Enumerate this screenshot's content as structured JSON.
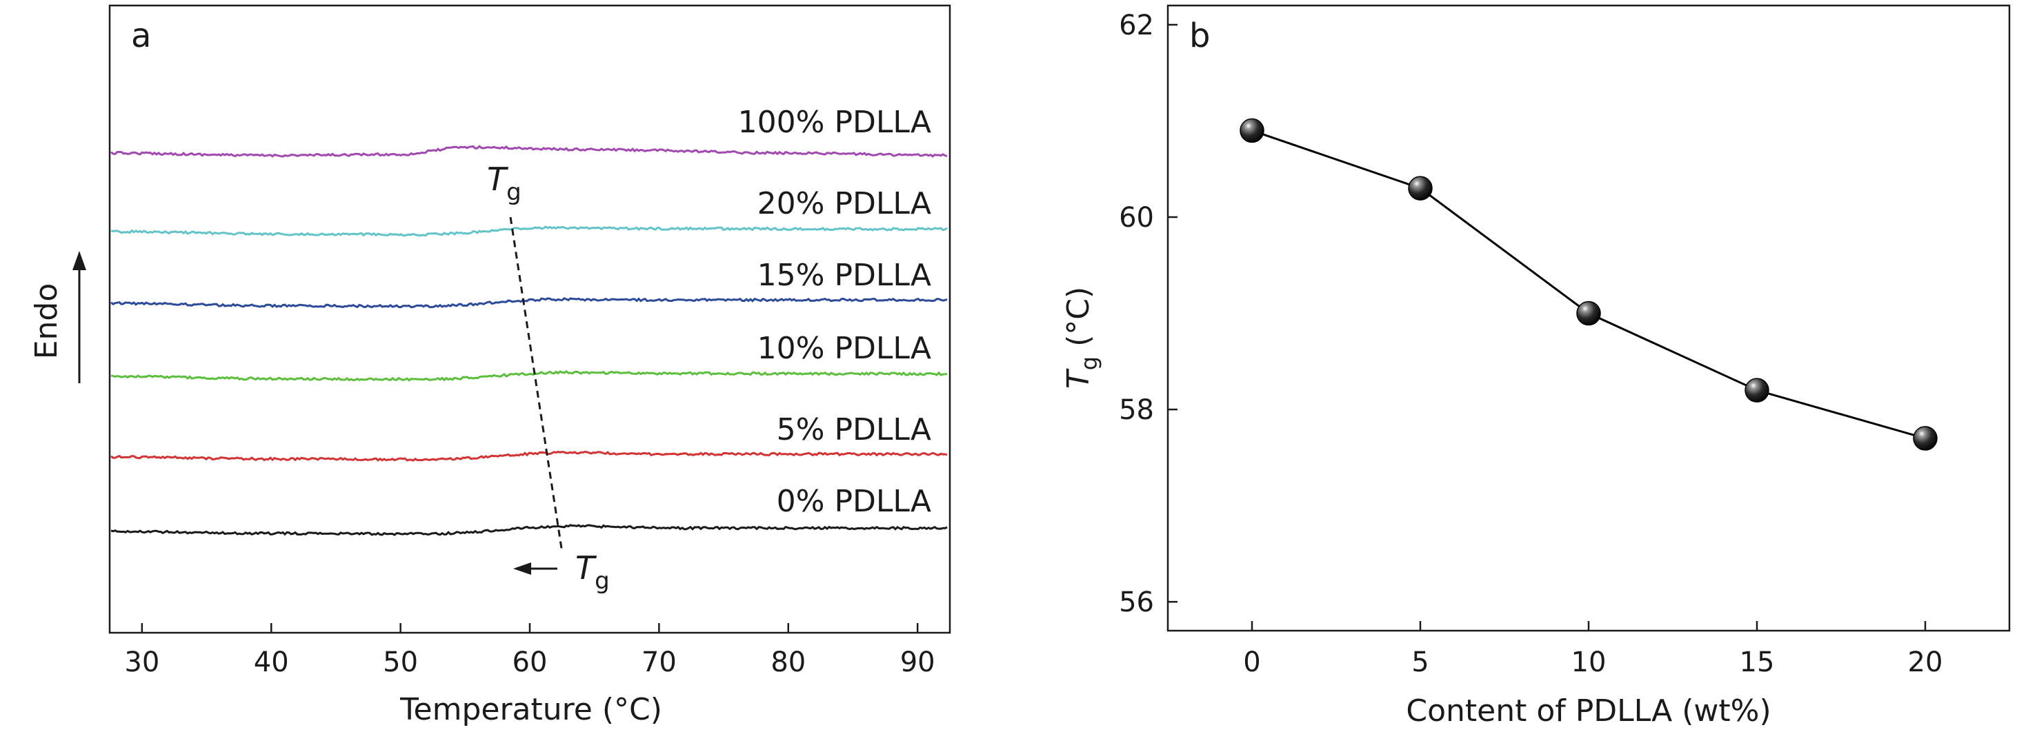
{
  "chart_data": [
    {
      "panel_label": "a",
      "type": "line",
      "xlabel": "Temperature (°C)",
      "ylabel": "Endo",
      "xlim": [
        27.5,
        92.5
      ],
      "xticks": [
        30,
        40,
        50,
        60,
        70,
        80,
        90
      ],
      "grid": false,
      "annotations": {
        "tg_marker_top": {
          "base": "T",
          "sub": "g"
        },
        "tg_marker_bottom": {
          "base": "T",
          "sub": "g"
        }
      },
      "series": [
        {
          "name": "100% PDLLA",
          "color": "#a149b0",
          "tg": 55,
          "x": [
            27.5,
            40,
            50,
            55,
            65,
            80,
            92.5
          ],
          "y": [
            0.0,
            -0.05,
            -0.03,
            0.12,
            0.07,
            0.0,
            -0.05
          ]
        },
        {
          "name": "20% PDLLA",
          "color": "#62c4c8",
          "tg": 61.5,
          "x": [
            27.5,
            40,
            52,
            61.5,
            70,
            92.5
          ],
          "y": [
            0.0,
            -0.05,
            -0.06,
            0.08,
            0.06,
            0.05
          ]
        },
        {
          "name": "15% PDLLA",
          "color": "#2c4a9a",
          "tg": 62,
          "x": [
            27.5,
            40,
            52,
            62,
            70,
            92.5
          ],
          "y": [
            0.0,
            -0.05,
            -0.06,
            0.08,
            0.07,
            0.07
          ]
        },
        {
          "name": "10% PDLLA",
          "color": "#5bbf3c",
          "tg": 63,
          "x": [
            27.5,
            40,
            52,
            63,
            70,
            92.5
          ],
          "y": [
            0.0,
            -0.05,
            -0.06,
            0.08,
            0.06,
            0.05
          ]
        },
        {
          "name": "5% PDLLA",
          "color": "#d33333",
          "tg": 63,
          "x": [
            27.5,
            40,
            52,
            63,
            70,
            92.5
          ],
          "y": [
            0.0,
            -0.04,
            -0.05,
            0.09,
            0.06,
            0.06
          ]
        },
        {
          "name": "0% PDLLA",
          "color": "#1a1a1a",
          "tg": 63.5,
          "x": [
            27.5,
            40,
            52,
            63.5,
            72,
            92.5
          ],
          "y": [
            0.0,
            -0.04,
            -0.05,
            0.11,
            0.07,
            0.07
          ]
        }
      ]
    },
    {
      "panel_label": "b",
      "type": "line",
      "xlabel": "Content of PDLLA (wt%)",
      "ylabel": {
        "base": "T",
        "sub": "g",
        "unit": " (°C)"
      },
      "xlim": [
        -2.5,
        22.5
      ],
      "ylim": [
        55.7,
        62.2
      ],
      "xticks": [
        0,
        5,
        10,
        15,
        20
      ],
      "yticks": [
        56,
        58,
        60,
        62
      ],
      "grid": false,
      "series": [
        {
          "x": [
            0,
            5,
            10,
            15,
            20
          ],
          "y": [
            60.9,
            60.3,
            59.0,
            58.2,
            57.7
          ],
          "marker": "sphere",
          "color": "#000000"
        }
      ]
    }
  ]
}
